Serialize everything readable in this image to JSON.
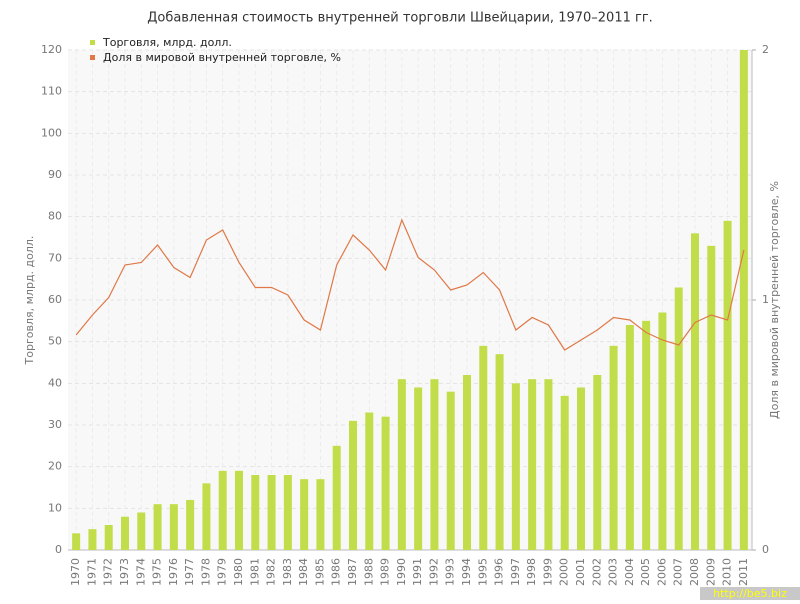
{
  "chart_data": {
    "type": "bar-line",
    "title": "Добавленная стоимость внутренней торговли Швейцарии, 1970–2011 гг.",
    "y_label": "Торговля, млрд. долл.",
    "y2_label": "Доля в мировой внутренней торговле, %",
    "watermark": "http://be5.biz",
    "categories": [
      "1970",
      "1971",
      "1972",
      "1973",
      "1974",
      "1975",
      "1976",
      "1977",
      "1978",
      "1979",
      "1980",
      "1981",
      "1982",
      "1983",
      "1984",
      "1985",
      "1986",
      "1987",
      "1988",
      "1989",
      "1990",
      "1991",
      "1992",
      "1993",
      "1994",
      "1995",
      "1996",
      "1997",
      "1998",
      "1999",
      "2000",
      "2001",
      "2002",
      "2003",
      "2004",
      "2005",
      "2006",
      "2007",
      "2008",
      "2009",
      "2010",
      "2011"
    ],
    "series": [
      {
        "name": "Торговля, млрд. долл.",
        "color": "#c2dd4a",
        "type": "bar",
        "values": [
          4,
          5,
          6,
          8,
          9,
          11,
          11,
          12,
          16,
          19,
          19,
          18,
          18,
          18,
          17,
          17,
          25,
          31,
          33,
          32,
          41,
          39,
          41,
          38,
          42,
          49,
          47,
          40,
          41,
          41,
          37,
          39,
          42,
          49,
          54,
          55,
          57,
          63,
          76,
          73,
          79,
          120
        ]
      },
      {
        "name": "Доля в мировой внутренней торговле, %",
        "color": "#e07848",
        "type": "line",
        "axis": "y2",
        "values": [
          0.86,
          0.94,
          1.01,
          1.14,
          1.15,
          1.22,
          1.13,
          1.09,
          1.24,
          1.28,
          1.15,
          1.05,
          1.05,
          1.02,
          0.92,
          0.88,
          1.14,
          1.26,
          1.2,
          1.12,
          1.32,
          1.17,
          1.12,
          1.04,
          1.06,
          1.11,
          1.04,
          0.88,
          0.93,
          0.9,
          0.8,
          0.84,
          0.88,
          0.93,
          0.92,
          0.87,
          0.84,
          0.82,
          0.91,
          0.94,
          0.92,
          1.2
        ]
      }
    ],
    "ylim": [
      0,
      120
    ],
    "yticks": [
      0,
      10,
      20,
      30,
      40,
      50,
      60,
      70,
      80,
      90,
      100,
      110,
      120
    ],
    "y2lim": [
      0,
      2
    ],
    "y2ticks": [
      0,
      1,
      2
    ],
    "grid": true,
    "legend": "top-left"
  }
}
